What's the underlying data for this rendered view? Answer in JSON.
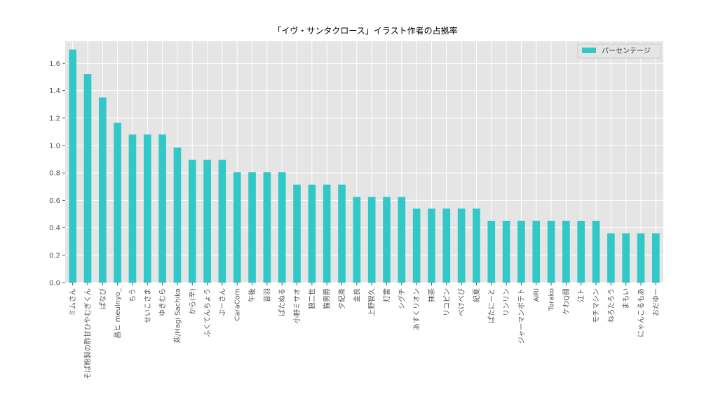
{
  "chart_data": {
    "type": "bar",
    "title": "「イヴ・サンタクロース」イラスト作者の占拠率",
    "xlabel": "",
    "ylabel": "",
    "ylim": [
      0,
      1.76
    ],
    "yticks": [
      0.0,
      0.2,
      0.4,
      0.6,
      0.8,
      1.0,
      1.2,
      1.4,
      1.6
    ],
    "ytick_labels": [
      "0.0",
      "0.2",
      "0.4",
      "0.6",
      "0.8",
      "1.0",
      "1.2",
      "1.4",
      "1.6"
    ],
    "grid": true,
    "legend_position": "top-right",
    "categories": [
      "ミムさん",
      "そば粉製の酢甘ひやむぎくん",
      "ぱなび",
      "昌ヒ meulnyo_",
      "ちう",
      "せいこさま",
      "ゆきむら",
      "萩/Hagi Sachika",
      "から(辛)",
      "ふくてんちょう",
      "ぶーさん",
      "CaraCorn",
      "午後",
      "音羽",
      "ぱたぬる",
      "小野ミサオ",
      "狼二世",
      "猫男爵",
      "夕紀斎",
      "金良",
      "上野智久",
      "灯雷",
      "シグチ",
      "あすくリオン",
      "抹茶",
      "リコピン",
      "べけべび",
      "紀夏",
      "ぱたにーと",
      "リンリン",
      "ジャーマンポテト",
      "AiRi",
      "Torako",
      "ケわQ鬪",
      "江ト",
      "モチマシン",
      "ねろたろう",
      "まもい",
      "にゃんこるもあ",
      "おだゆー"
    ],
    "series": [
      {
        "name": "パーセンテージ",
        "color": "#33c8c8",
        "values": [
          1.7,
          1.52,
          1.35,
          1.165,
          1.08,
          1.08,
          1.08,
          0.985,
          0.895,
          0.895,
          0.895,
          0.805,
          0.805,
          0.805,
          0.805,
          0.715,
          0.715,
          0.715,
          0.715,
          0.625,
          0.625,
          0.625,
          0.625,
          0.54,
          0.54,
          0.54,
          0.54,
          0.54,
          0.45,
          0.45,
          0.45,
          0.45,
          0.45,
          0.45,
          0.45,
          0.45,
          0.36,
          0.36,
          0.36,
          0.36
        ]
      }
    ]
  },
  "colors": {
    "plot_background": "#e5e5e5",
    "grid": "#ffffff",
    "bar": "#33c8c8"
  }
}
